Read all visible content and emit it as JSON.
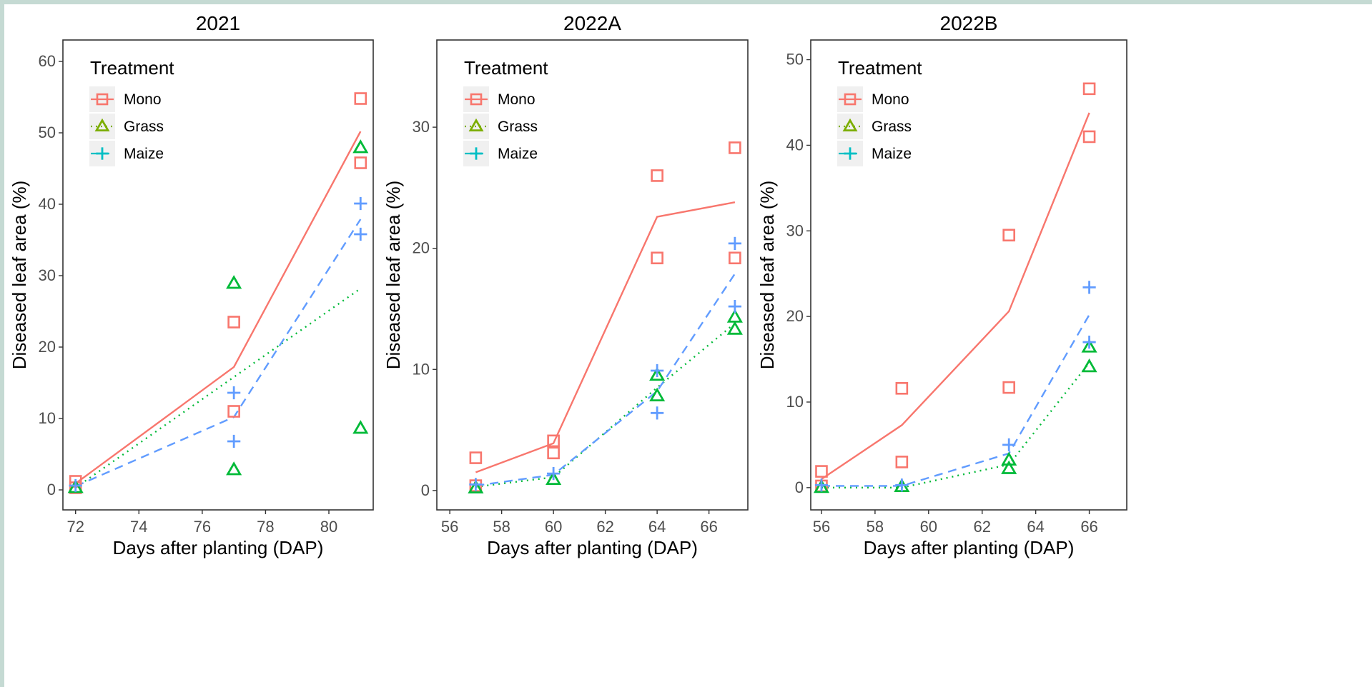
{
  "colors": {
    "Mono": "#F8766D",
    "Grass": "#00BA38",
    "Maize": "#619CFF",
    "Grass_legend": "#7CAE00",
    "Maize_legend": "#00BFC4"
  },
  "legend": {
    "title": "Treatment",
    "items": [
      {
        "label": "Mono",
        "icon": "square-open",
        "line": "solid"
      },
      {
        "label": "Grass",
        "icon": "triangle-open",
        "line": "dotted"
      },
      {
        "label": "Maize",
        "icon": "plus",
        "line": "dashed"
      }
    ]
  },
  "chart_data": [
    {
      "type": "line",
      "title": "2021",
      "xlabel": "Days after planting (DAP)",
      "ylabel": "Diseased leaf area (%)",
      "xlim": [
        71.6,
        81.4
      ],
      "ylim": [
        -2.8,
        63
      ],
      "xticks": [
        72,
        74,
        76,
        78,
        80
      ],
      "yticks": [
        0,
        10,
        20,
        30,
        40,
        50,
        60
      ],
      "series": [
        {
          "name": "Mono",
          "line": [
            [
              72,
              0.9
            ],
            [
              77,
              17.2
            ],
            [
              81,
              50.2
            ]
          ],
          "points": [
            [
              72,
              1.2
            ],
            [
              72,
              0.3
            ],
            [
              77,
              23.5
            ],
            [
              77,
              11.0
            ],
            [
              81,
              54.8
            ],
            [
              81,
              45.8
            ]
          ]
        },
        {
          "name": "Grass",
          "line": [
            [
              72,
              0.3
            ],
            [
              77,
              15.8
            ],
            [
              81,
              28.2
            ]
          ],
          "points": [
            [
              72,
              0.3
            ],
            [
              77,
              28.9
            ],
            [
              77,
              2.8
            ],
            [
              81,
              47.9
            ],
            [
              81,
              8.6
            ]
          ]
        },
        {
          "name": "Maize",
          "line": [
            [
              72,
              0.5
            ],
            [
              77,
              10.2
            ],
            [
              81,
              37.9
            ]
          ],
          "points": [
            [
              72,
              0.6
            ],
            [
              77,
              13.6
            ],
            [
              77,
              6.8
            ],
            [
              81,
              40.1
            ],
            [
              81,
              35.8
            ]
          ]
        }
      ]
    },
    {
      "type": "line",
      "title": "2022A",
      "xlabel": "Days after planting (DAP)",
      "ylabel": "Diseased leaf area (%)",
      "xlim": [
        55.5,
        67.5
      ],
      "ylim": [
        -1.6,
        37.2
      ],
      "xticks": [
        56,
        58,
        60,
        62,
        64,
        66
      ],
      "yticks": [
        0,
        10,
        20,
        30
      ],
      "series": [
        {
          "name": "Mono",
          "line": [
            [
              57,
              1.5
            ],
            [
              60,
              3.9
            ],
            [
              64,
              22.6
            ],
            [
              67,
              23.8
            ]
          ],
          "points": [
            [
              57,
              2.7
            ],
            [
              57,
              0.4
            ],
            [
              60,
              4.1
            ],
            [
              60,
              3.1
            ],
            [
              64,
              26.0
            ],
            [
              64,
              19.2
            ],
            [
              67,
              28.3
            ],
            [
              67,
              19.2
            ]
          ]
        },
        {
          "name": "Grass",
          "line": [
            [
              57,
              0.3
            ],
            [
              60,
              1.1
            ],
            [
              64,
              8.5
            ],
            [
              67,
              13.8
            ]
          ],
          "points": [
            [
              57,
              0.2
            ],
            [
              60,
              0.9
            ],
            [
              64,
              9.5
            ],
            [
              64,
              7.8
            ],
            [
              67,
              14.3
            ],
            [
              67,
              13.3
            ]
          ]
        },
        {
          "name": "Maize",
          "line": [
            [
              57,
              0.4
            ],
            [
              60,
              1.3
            ],
            [
              64,
              8.2
            ],
            [
              67,
              17.9
            ]
          ],
          "points": [
            [
              57,
              0.5
            ],
            [
              60,
              1.4
            ],
            [
              64,
              9.9
            ],
            [
              64,
              6.4
            ],
            [
              67,
              20.4
            ],
            [
              67,
              15.2
            ]
          ]
        }
      ]
    },
    {
      "type": "line",
      "title": "2022B",
      "xlabel": "Days after planting (DAP)",
      "ylabel": "Diseased leaf area (%)",
      "xlim": [
        55.6,
        67.4
      ],
      "ylim": [
        -2.6,
        52.3
      ],
      "xticks": [
        56,
        58,
        60,
        62,
        64,
        66
      ],
      "yticks": [
        0,
        10,
        20,
        30,
        40,
        50
      ],
      "series": [
        {
          "name": "Mono",
          "line": [
            [
              56,
              1.0
            ],
            [
              59,
              7.3
            ],
            [
              63,
              20.6
            ],
            [
              66,
              43.8
            ]
          ],
          "points": [
            [
              56,
              1.9
            ],
            [
              56,
              0.2
            ],
            [
              59,
              11.6
            ],
            [
              59,
              3.0
            ],
            [
              63,
              29.5
            ],
            [
              63,
              11.7
            ],
            [
              66,
              46.6
            ],
            [
              66,
              41.0
            ]
          ]
        },
        {
          "name": "Grass",
          "line": [
            [
              56,
              0.0
            ],
            [
              59,
              0.0
            ],
            [
              63,
              2.7
            ],
            [
              66,
              14.6
            ]
          ],
          "points": [
            [
              56,
              0.0
            ],
            [
              59,
              0.1
            ],
            [
              63,
              3.2
            ],
            [
              63,
              2.2
            ],
            [
              66,
              16.4
            ],
            [
              66,
              14.1
            ]
          ]
        },
        {
          "name": "Maize",
          "line": [
            [
              56,
              0.2
            ],
            [
              59,
              0.2
            ],
            [
              63,
              4.0
            ],
            [
              66,
              20.2
            ]
          ],
          "points": [
            [
              56,
              0.3
            ],
            [
              59,
              0.3
            ],
            [
              63,
              5.0
            ],
            [
              66,
              23.4
            ],
            [
              66,
              17.0
            ]
          ]
        }
      ]
    }
  ]
}
